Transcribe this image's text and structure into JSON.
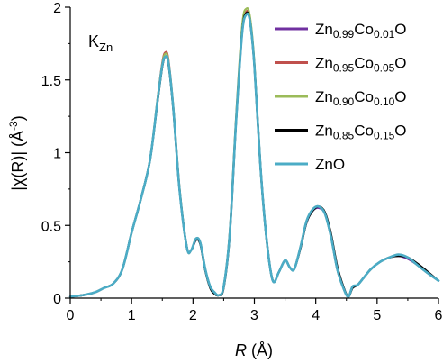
{
  "chart_data": {
    "type": "line",
    "annotation": {
      "main": "K",
      "sub": "Zn"
    },
    "xlabel": {
      "italic": "R",
      "rest": " (Å)"
    },
    "ylabel": {
      "main": "|χ(R)| (Å",
      "sup": "-3",
      "end": ")"
    },
    "xlim": [
      0,
      6
    ],
    "ylim": [
      0,
      2
    ],
    "xticks": [
      0,
      1,
      2,
      3,
      4,
      5,
      6
    ],
    "yticks": [
      0,
      0.5,
      1,
      1.5,
      2
    ],
    "ytick_labels": [
      "0",
      "0.5",
      "1",
      "1.5",
      "2"
    ],
    "grid": false,
    "legend_position": "top-right",
    "series": [
      {
        "name": [
          [
            "Zn",
            false
          ],
          [
            "0.99",
            true
          ],
          [
            "Co",
            false
          ],
          [
            "0.01",
            true
          ],
          [
            "O",
            false
          ]
        ],
        "color": "#7030a0",
        "x": [
          0,
          0.2,
          0.4,
          0.55,
          0.7,
          0.85,
          1.0,
          1.15,
          1.3,
          1.42,
          1.5,
          1.55,
          1.6,
          1.68,
          1.78,
          1.9,
          1.97,
          2.05,
          2.12,
          2.2,
          2.28,
          2.35,
          2.42,
          2.5,
          2.6,
          2.7,
          2.8,
          2.87,
          2.93,
          3.0,
          3.1,
          3.2,
          3.3,
          3.4,
          3.5,
          3.58,
          3.65,
          3.75,
          3.85,
          3.95,
          4.05,
          4.15,
          4.25,
          4.35,
          4.45,
          4.53,
          4.6,
          4.68,
          4.78,
          4.9,
          5.05,
          5.2,
          5.35,
          5.5,
          5.65,
          5.8,
          6.0
        ],
        "y": [
          0.01,
          0.02,
          0.04,
          0.07,
          0.1,
          0.2,
          0.45,
          0.68,
          0.95,
          1.35,
          1.6,
          1.66,
          1.62,
          1.3,
          0.75,
          0.35,
          0.33,
          0.4,
          0.38,
          0.2,
          0.08,
          0.04,
          0.02,
          0.08,
          0.45,
          1.2,
          1.82,
          1.95,
          1.9,
          1.6,
          0.9,
          0.4,
          0.12,
          0.18,
          0.26,
          0.21,
          0.2,
          0.35,
          0.52,
          0.6,
          0.62,
          0.58,
          0.42,
          0.2,
          0.07,
          0.01,
          0.08,
          0.09,
          0.14,
          0.2,
          0.25,
          0.28,
          0.29,
          0.27,
          0.23,
          0.18,
          0.12
        ]
      },
      {
        "name": [
          [
            "Zn",
            false
          ],
          [
            "0.95",
            true
          ],
          [
            "Co",
            false
          ],
          [
            "0.05",
            true
          ],
          [
            "O",
            false
          ]
        ],
        "color": "#c0504d",
        "x": [
          0,
          0.2,
          0.4,
          0.55,
          0.7,
          0.85,
          1.0,
          1.15,
          1.3,
          1.42,
          1.5,
          1.55,
          1.6,
          1.68,
          1.78,
          1.9,
          1.97,
          2.05,
          2.12,
          2.2,
          2.28,
          2.35,
          2.42,
          2.5,
          2.6,
          2.7,
          2.8,
          2.87,
          2.93,
          3.0,
          3.1,
          3.2,
          3.3,
          3.4,
          3.5,
          3.58,
          3.65,
          3.75,
          3.85,
          3.95,
          4.05,
          4.15,
          4.25,
          4.35,
          4.45,
          4.53,
          4.6,
          4.68,
          4.78,
          4.9,
          5.05,
          5.2,
          5.35,
          5.5,
          5.65,
          5.8,
          6.0
        ],
        "y": [
          0.01,
          0.02,
          0.04,
          0.07,
          0.1,
          0.2,
          0.45,
          0.68,
          0.95,
          1.36,
          1.62,
          1.69,
          1.64,
          1.31,
          0.76,
          0.35,
          0.33,
          0.41,
          0.38,
          0.2,
          0.08,
          0.04,
          0.02,
          0.08,
          0.46,
          1.22,
          1.85,
          1.97,
          1.92,
          1.61,
          0.9,
          0.4,
          0.12,
          0.18,
          0.26,
          0.21,
          0.2,
          0.35,
          0.53,
          0.61,
          0.63,
          0.58,
          0.42,
          0.2,
          0.07,
          0.01,
          0.08,
          0.09,
          0.14,
          0.2,
          0.25,
          0.28,
          0.3,
          0.28,
          0.23,
          0.18,
          0.12
        ]
      },
      {
        "name": [
          [
            "Zn",
            false
          ],
          [
            "0.90",
            true
          ],
          [
            "Co",
            false
          ],
          [
            "0.10",
            true
          ],
          [
            "O",
            false
          ]
        ],
        "color": "#9bbb59",
        "x": [
          0,
          0.2,
          0.4,
          0.55,
          0.7,
          0.85,
          1.0,
          1.15,
          1.3,
          1.42,
          1.5,
          1.55,
          1.6,
          1.68,
          1.78,
          1.9,
          1.97,
          2.05,
          2.12,
          2.2,
          2.28,
          2.35,
          2.42,
          2.5,
          2.6,
          2.7,
          2.8,
          2.87,
          2.93,
          3.0,
          3.1,
          3.2,
          3.3,
          3.4,
          3.5,
          3.58,
          3.65,
          3.75,
          3.85,
          3.95,
          4.05,
          4.15,
          4.25,
          4.35,
          4.45,
          4.53,
          4.6,
          4.68,
          4.78,
          4.9,
          5.05,
          5.2,
          5.35,
          5.5,
          5.65,
          5.8,
          6.0
        ],
        "y": [
          0.01,
          0.02,
          0.04,
          0.07,
          0.1,
          0.2,
          0.45,
          0.68,
          0.95,
          1.36,
          1.61,
          1.68,
          1.63,
          1.31,
          0.76,
          0.35,
          0.33,
          0.41,
          0.38,
          0.2,
          0.08,
          0.04,
          0.02,
          0.08,
          0.46,
          1.23,
          1.87,
          1.99,
          1.93,
          1.62,
          0.9,
          0.4,
          0.12,
          0.18,
          0.26,
          0.21,
          0.2,
          0.35,
          0.53,
          0.61,
          0.63,
          0.58,
          0.42,
          0.2,
          0.07,
          0.01,
          0.08,
          0.09,
          0.14,
          0.2,
          0.25,
          0.28,
          0.3,
          0.28,
          0.23,
          0.18,
          0.12
        ]
      },
      {
        "name": [
          [
            "Zn",
            false
          ],
          [
            "0.85",
            true
          ],
          [
            "Co",
            false
          ],
          [
            "0.15",
            true
          ],
          [
            "O",
            false
          ]
        ],
        "color": "#000000",
        "x": [
          0,
          0.2,
          0.4,
          0.55,
          0.7,
          0.85,
          1.0,
          1.15,
          1.3,
          1.42,
          1.5,
          1.55,
          1.6,
          1.68,
          1.78,
          1.9,
          1.97,
          2.05,
          2.12,
          2.2,
          2.28,
          2.35,
          2.42,
          2.5,
          2.6,
          2.7,
          2.8,
          2.87,
          2.93,
          3.0,
          3.1,
          3.2,
          3.3,
          3.4,
          3.5,
          3.58,
          3.65,
          3.75,
          3.85,
          3.95,
          4.05,
          4.15,
          4.25,
          4.35,
          4.45,
          4.53,
          4.6,
          4.68,
          4.78,
          4.9,
          5.05,
          5.2,
          5.35,
          5.5,
          5.65,
          5.8,
          6.0
        ],
        "y": [
          0.01,
          0.02,
          0.04,
          0.07,
          0.1,
          0.2,
          0.45,
          0.68,
          0.95,
          1.34,
          1.59,
          1.66,
          1.61,
          1.29,
          0.75,
          0.35,
          0.33,
          0.4,
          0.37,
          0.19,
          0.07,
          0.03,
          0.02,
          0.07,
          0.44,
          1.2,
          1.83,
          1.96,
          1.9,
          1.6,
          0.9,
          0.4,
          0.12,
          0.18,
          0.26,
          0.21,
          0.2,
          0.34,
          0.52,
          0.6,
          0.63,
          0.59,
          0.44,
          0.22,
          0.08,
          0.01,
          0.07,
          0.09,
          0.14,
          0.2,
          0.25,
          0.28,
          0.29,
          0.28,
          0.24,
          0.19,
          0.12
        ]
      },
      {
        "name": [
          [
            "ZnO",
            false
          ]
        ],
        "color": "#4bacc6",
        "x": [
          0,
          0.2,
          0.4,
          0.55,
          0.7,
          0.85,
          1.0,
          1.15,
          1.3,
          1.42,
          1.5,
          1.55,
          1.6,
          1.68,
          1.78,
          1.9,
          1.97,
          2.05,
          2.12,
          2.2,
          2.28,
          2.35,
          2.42,
          2.5,
          2.6,
          2.7,
          2.8,
          2.87,
          2.93,
          3.0,
          3.1,
          3.2,
          3.3,
          3.4,
          3.5,
          3.58,
          3.65,
          3.75,
          3.85,
          3.95,
          4.05,
          4.15,
          4.25,
          4.35,
          4.45,
          4.53,
          4.6,
          4.68,
          4.78,
          4.9,
          5.05,
          5.2,
          5.35,
          5.5,
          5.65,
          5.8,
          6.0
        ],
        "y": [
          0.01,
          0.02,
          0.04,
          0.07,
          0.1,
          0.2,
          0.45,
          0.68,
          0.95,
          1.35,
          1.6,
          1.66,
          1.62,
          1.3,
          0.75,
          0.35,
          0.33,
          0.41,
          0.38,
          0.2,
          0.08,
          0.04,
          0.02,
          0.08,
          0.45,
          1.2,
          1.82,
          1.95,
          1.9,
          1.6,
          0.9,
          0.4,
          0.12,
          0.18,
          0.26,
          0.21,
          0.2,
          0.35,
          0.53,
          0.61,
          0.63,
          0.58,
          0.42,
          0.2,
          0.07,
          0.01,
          0.08,
          0.09,
          0.14,
          0.2,
          0.25,
          0.28,
          0.3,
          0.28,
          0.23,
          0.18,
          0.12
        ]
      }
    ]
  }
}
